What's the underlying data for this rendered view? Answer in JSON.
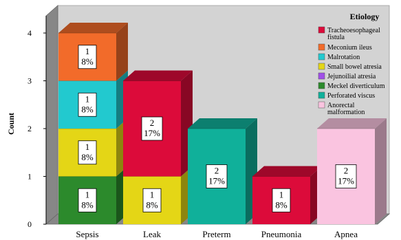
{
  "chart_data": {
    "type": "bar",
    "stacked": true,
    "three_d": true,
    "categories": [
      "Sepsis",
      "Leak",
      "Preterm",
      "Pneumonia",
      "Apnea"
    ],
    "ylabel": "Count",
    "xlabel": "",
    "ylim": [
      0,
      4
    ],
    "yticks": [
      0,
      1,
      2,
      3,
      4
    ],
    "legend_title": "Etiology",
    "legend_position": "top-right",
    "series": [
      {
        "name": "Tracheoesophageal fistula",
        "color": "#DC0B3A",
        "values": [
          0,
          2,
          0,
          1,
          0
        ],
        "labels": [
          "",
          "2\n17%",
          "",
          "1\n8%",
          ""
        ]
      },
      {
        "name": "Meconium ileus",
        "color": "#F26B2A",
        "values": [
          1,
          0,
          0,
          0,
          0
        ],
        "labels": [
          "1\n8%",
          "",
          "",
          "",
          ""
        ]
      },
      {
        "name": "Malrotation",
        "color": "#22C9CF",
        "values": [
          1,
          0,
          0,
          0,
          0
        ],
        "labels": [
          "1\n8%",
          "",
          "",
          "",
          ""
        ]
      },
      {
        "name": "Small bowel atresia",
        "color": "#E4D616",
        "values": [
          1,
          1,
          0,
          0,
          0
        ],
        "labels": [
          "1\n8%",
          "1\n8%",
          "",
          "",
          ""
        ]
      },
      {
        "name": "Jejunoilial atresia",
        "color": "#A04FE8",
        "values": [
          0,
          0,
          0,
          0,
          0
        ],
        "labels": [
          "",
          "",
          "",
          "",
          ""
        ]
      },
      {
        "name": "Meckel diverticulum",
        "color": "#2C8A2C",
        "values": [
          1,
          0,
          0,
          0,
          0
        ],
        "labels": [
          "1\n8%",
          "",
          "",
          "",
          ""
        ]
      },
      {
        "name": "Perforated viscus",
        "color": "#10B09A",
        "values": [
          0,
          0,
          2,
          0,
          0
        ],
        "labels": [
          "",
          "",
          "2\n17%",
          "",
          ""
        ]
      },
      {
        "name": "Anorectal malformation",
        "color": "#FAC4E0",
        "values": [
          0,
          0,
          0,
          0,
          2
        ],
        "labels": [
          "",
          "",
          "",
          "",
          "2\n17%"
        ]
      }
    ],
    "stack_order": [
      [
        {
          "series": "Meckel diverticulum",
          "value": 1,
          "label": "1\n8%"
        },
        {
          "series": "Small bowel atresia",
          "value": 1,
          "label": "1\n8%"
        },
        {
          "series": "Malrotation",
          "value": 1,
          "label": "1\n8%"
        },
        {
          "series": "Meconium ileus",
          "value": 1,
          "label": "1\n8%"
        }
      ],
      [
        {
          "series": "Small bowel atresia",
          "value": 1,
          "label": "1\n8%"
        },
        {
          "series": "Tracheoesophageal fistula",
          "value": 2,
          "label": "2\n17%"
        }
      ],
      [
        {
          "series": "Perforated viscus",
          "value": 2,
          "label": "2\n17%"
        }
      ],
      [
        {
          "series": "Tracheoesophageal fistula",
          "value": 1,
          "label": "1\n8%"
        }
      ],
      [
        {
          "series": "Anorectal malformation",
          "value": 2,
          "label": "2\n17%"
        }
      ]
    ],
    "legend_entries": [
      {
        "lines": [
          "Tracheoesophageal",
          "fistula"
        ],
        "color": "#DC0B3A"
      },
      {
        "lines": [
          "Meconium ileus"
        ],
        "color": "#F26B2A"
      },
      {
        "lines": [
          "Malrotation"
        ],
        "color": "#22C9CF"
      },
      {
        "lines": [
          "Small bowel atresia"
        ],
        "color": "#E4D616"
      },
      {
        "lines": [
          "Jejunoilial atresia"
        ],
        "color": "#A04FE8"
      },
      {
        "lines": [
          "Meckel diverticulum"
        ],
        "color": "#2C8A2C"
      },
      {
        "lines": [
          "Perforated viscus"
        ],
        "color": "#10B09A"
      },
      {
        "lines": [
          "Anorectal",
          "malformation"
        ],
        "color": "#FAC4E0"
      }
    ],
    "grid": false,
    "background_color": "#D3D3D3",
    "wall_color": "#878787"
  }
}
